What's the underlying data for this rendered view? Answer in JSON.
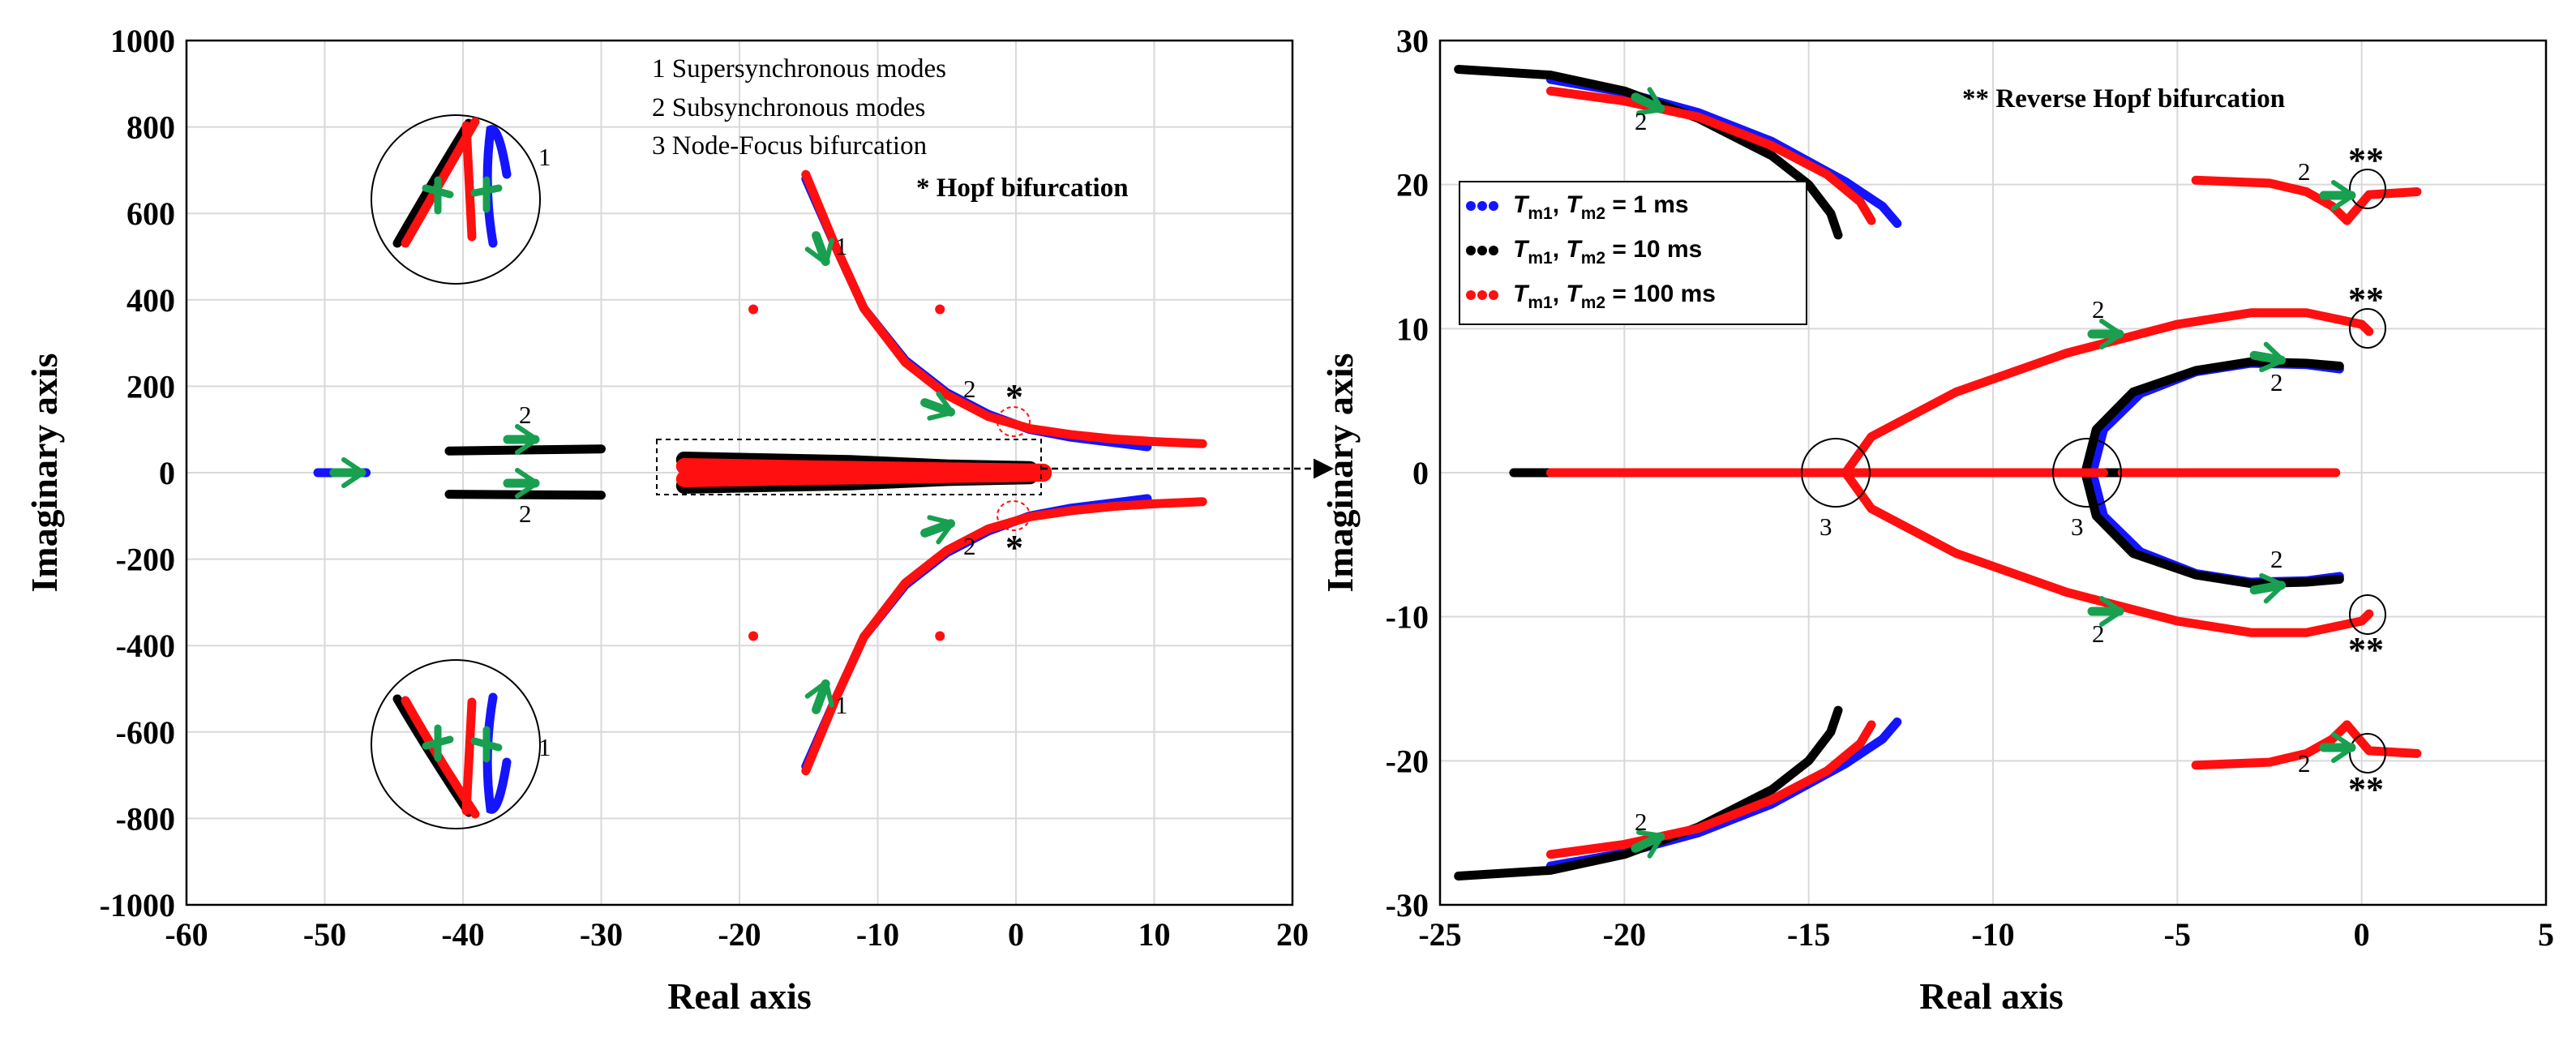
{
  "chart_data": [
    {
      "panel": "left",
      "type": "scatter",
      "title": "",
      "xlabel": "Real axis",
      "ylabel": "Imaginary axis",
      "xlim": [
        -60,
        20
      ],
      "ylim": [
        -1000,
        1000
      ],
      "xticks": [
        -60,
        -50,
        -40,
        -30,
        -20,
        -10,
        0,
        10,
        20
      ],
      "xtick_labels": [
        "-60",
        "-50",
        "-40",
        "-30",
        "-20",
        "-10",
        "0",
        "10",
        "20"
      ],
      "yticks": [
        -1000,
        -800,
        -600,
        -400,
        -200,
        0,
        200,
        400,
        600,
        800,
        1000
      ],
      "ytick_labels": [
        "-1000",
        "-800",
        "-600",
        "-400",
        "-200",
        "0",
        "200",
        "400",
        "600",
        "800",
        "1000"
      ],
      "grid": true,
      "annotations": [
        "1  Supersynchronous modes",
        "2  Subsynchronous modes",
        "3  Node-Focus bifurcation",
        "* Hopf bifurcation"
      ],
      "series": [
        {
          "name": "Tm1, Tm2 = 1 ms",
          "color": "#1414ff",
          "branches": [
            {
              "x": [
                -50.5,
                -47
              ],
              "y": [
                0,
                0
              ]
            },
            {
              "x": [
                -15.2,
                -13,
                -11,
                -8,
                -5,
                -2,
                1,
                4,
                7,
                9.5
              ],
              "y": [
                680,
                520,
                380,
                260,
                185,
                135,
                100,
                82,
                70,
                60
              ]
            },
            {
              "x": [
                -15.2,
                -13,
                -11,
                -8,
                -5,
                -2,
                1,
                4,
                7,
                9.5
              ],
              "y": [
                -680,
                -520,
                -380,
                -260,
                -185,
                -135,
                -100,
                -82,
                -70,
                -60
              ]
            }
          ]
        },
        {
          "name": "Tm1, Tm2 = 10 ms",
          "color": "#000000",
          "branches": [
            {
              "x": [
                -41,
                -30
              ],
              "y": [
                50,
                55
              ]
            },
            {
              "x": [
                -41,
                -30
              ],
              "y": [
                -50,
                -52
              ]
            },
            {
              "x": [
                -24,
                -12,
                -5,
                1
              ],
              "y": [
                30,
                22,
                12,
                8
              ]
            },
            {
              "x": [
                -24,
                -12,
                -5,
                1
              ],
              "y": [
                -30,
                -22,
                -12,
                -8
              ]
            }
          ]
        },
        {
          "name": "Tm1, Tm2 = 100 ms",
          "color": "#ff0f0f",
          "branches": [
            {
              "x": [
                -15.2,
                -13,
                -11,
                -8,
                -5,
                -2,
                1,
                4,
                7,
                10,
                13.5
              ],
              "y": [
                690,
                520,
                380,
                255,
                180,
                130,
                102,
                88,
                78,
                72,
                67
              ]
            },
            {
              "x": [
                -15.2,
                -13,
                -11,
                -8,
                -5,
                -2,
                1,
                4,
                7,
                10,
                13.5
              ],
              "y": [
                -690,
                -520,
                -380,
                -255,
                -180,
                -130,
                -102,
                -88,
                -78,
                -72,
                -67
              ]
            },
            {
              "x": [
                -24,
                -15,
                -5,
                2
              ],
              "y": [
                15,
                10,
                5,
                2
              ]
            },
            {
              "x": [
                -24,
                -15,
                -5,
                2
              ],
              "y": [
                -15,
                -10,
                -5,
                -2
              ]
            },
            {
              "x": [
                -19,
                -5.5,
                -19,
                -5.5
              ],
              "y": [
                378,
                378,
                -378,
                -378
              ]
            }
          ]
        }
      ]
    },
    {
      "panel": "right",
      "type": "scatter",
      "title": "",
      "xlabel": "Real axis",
      "ylabel": "Imaginary axis",
      "xlim": [
        -25,
        5
      ],
      "ylim": [
        -30,
        30
      ],
      "xticks": [
        -25,
        -20,
        -15,
        -10,
        -5,
        0,
        5
      ],
      "xtick_labels": [
        "-25",
        "-20",
        "-15",
        "-10",
        "-5",
        "0",
        "5"
      ],
      "yticks": [
        -30,
        -20,
        -10,
        0,
        10,
        20,
        30
      ],
      "ytick_labels": [
        "-30",
        "-20",
        "-10",
        "0",
        "10",
        "20",
        "30"
      ],
      "grid": true,
      "annotations": [
        "** Reverse Hopf bifurcation"
      ],
      "legend_location": "upper-left",
      "series": [
        {
          "name": "Tm1, Tm2 = 1 ms",
          "color": "#1414ff",
          "branches": [
            {
              "x": [
                -22,
                -20,
                -18,
                -16,
                -14,
                -13,
                -12.6
              ],
              "y": [
                27.3,
                26.4,
                25,
                23,
                20.2,
                18.5,
                17.3
              ]
            },
            {
              "x": [
                -22,
                -20,
                -18,
                -16,
                -14,
                -13,
                -12.6
              ],
              "y": [
                -27.3,
                -26.4,
                -25,
                -23,
                -20.2,
                -18.5,
                -17.3
              ]
            },
            {
              "x": [
                -7.3,
                -7,
                -6,
                -4.5,
                -3,
                -1.5,
                -0.6
              ],
              "y": [
                0,
                3,
                5.5,
                7,
                7.6,
                7.5,
                7.2
              ]
            },
            {
              "x": [
                -7.3,
                -7,
                -6,
                -4.5,
                -3,
                -1.5,
                -0.6
              ],
              "y": [
                0,
                -3,
                -5.5,
                -7,
                -7.6,
                -7.5,
                -7.2
              ]
            }
          ]
        },
        {
          "name": "Tm1, Tm2 = 10 ms",
          "color": "#000000",
          "branches": [
            {
              "x": [
                -24.5,
                -22,
                -20,
                -18,
                -16,
                -15,
                -14.4,
                -14.2
              ],
              "y": [
                28,
                27.6,
                26.5,
                24.6,
                22,
                20,
                18,
                16.5
              ]
            },
            {
              "x": [
                -24.5,
                -22,
                -20,
                -18,
                -16,
                -15,
                -14.4,
                -14.2
              ],
              "y": [
                -28,
                -27.6,
                -26.5,
                -24.6,
                -22,
                -20,
                -18,
                -16.5
              ]
            },
            {
              "x": [
                -23,
                -6.5
              ],
              "y": [
                0,
                0
              ]
            },
            {
              "x": [
                -7.5,
                -7.2,
                -6.2,
                -4.5,
                -3,
                -1.5,
                -0.6
              ],
              "y": [
                0,
                3,
                5.6,
                7.1,
                7.7,
                7.6,
                7.4
              ]
            },
            {
              "x": [
                -7.5,
                -7.2,
                -6.2,
                -4.5,
                -3,
                -1.5,
                -0.6
              ],
              "y": [
                0,
                -3,
                -5.6,
                -7.1,
                -7.7,
                -7.6,
                -7.4
              ]
            }
          ]
        },
        {
          "name": "Tm1, Tm2 = 100 ms",
          "color": "#ff0f0f",
          "branches": [
            {
              "x": [
                -22,
                -20,
                -18,
                -16,
                -14.5,
                -13.6,
                -13.3
              ],
              "y": [
                26.5,
                25.8,
                24.7,
                22.7,
                20.7,
                18.8,
                17.5
              ]
            },
            {
              "x": [
                -22,
                -20,
                -18,
                -16,
                -14.5,
                -13.6,
                -13.3
              ],
              "y": [
                -26.5,
                -25.8,
                -24.7,
                -22.7,
                -20.7,
                -18.8,
                -17.5
              ]
            },
            {
              "x": [
                -22,
                -7
              ],
              "y": [
                0,
                0
              ]
            },
            {
              "x": [
                -6.5,
                -0.7
              ],
              "y": [
                0,
                0
              ]
            },
            {
              "x": [
                -14,
                -13.3,
                -11,
                -8,
                -5,
                -3,
                -1.5,
                0,
                0.2
              ],
              "y": [
                0,
                2.5,
                5.6,
                8.3,
                10.3,
                11.1,
                11.1,
                10.3,
                9.8
              ]
            },
            {
              "x": [
                -14,
                -13.3,
                -11,
                -8,
                -5,
                -3,
                -1.5,
                0,
                0.2
              ],
              "y": [
                0,
                -2.5,
                -5.6,
                -8.3,
                -10.3,
                -11.1,
                -11.1,
                -10.3,
                -9.8
              ]
            },
            {
              "x": [
                -4.5,
                -2.5,
                -1.5,
                -0.8,
                -0.4,
                0.2,
                1.5
              ],
              "y": [
                20.3,
                20.1,
                19.5,
                18.5,
                17.5,
                19.3,
                19.5
              ]
            },
            {
              "x": [
                -4.5,
                -2.5,
                -1.5,
                -0.8,
                -0.4,
                0.2,
                1.5
              ],
              "y": [
                -20.3,
                -20.1,
                -19.5,
                -18.5,
                -17.5,
                -19.3,
                -19.5
              ]
            }
          ]
        }
      ],
      "legend": [
        {
          "base": "T",
          "sub1": "m1",
          "sep": ", ",
          "sub2": "m2",
          "value": " = 1 ms",
          "color": "#1414ff"
        },
        {
          "base": "T",
          "sub1": "m1",
          "sep": ", ",
          "sub2": "m2",
          "value": " = 10 ms",
          "color": "#000000"
        },
        {
          "base": "T",
          "sub1": "m1",
          "sep": ", ",
          "sub2": "m2",
          "value": " = 100 ms",
          "color": "#ff0f0f"
        }
      ]
    }
  ],
  "labels": {
    "one": "1",
    "two": "2",
    "three": "3",
    "star": "*",
    "dstar": "**"
  }
}
